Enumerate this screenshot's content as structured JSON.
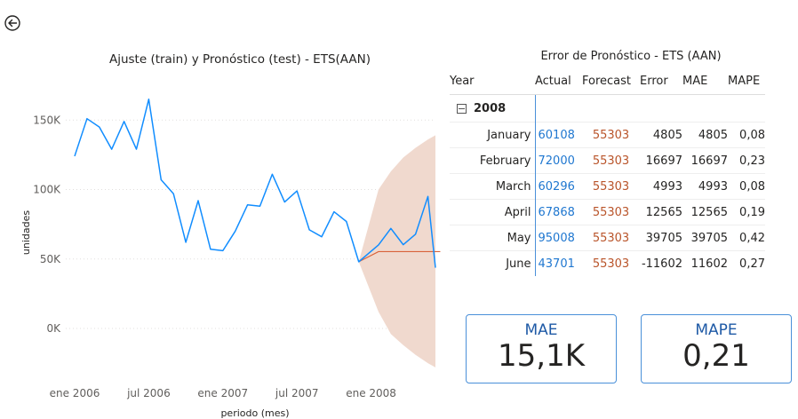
{
  "back_button": {
    "icon": "arrow-left-circle-icon"
  },
  "chart_data": {
    "type": "line",
    "title": "Ajuste (train) y Pronóstico (test) - ETS(AAN)",
    "xlabel": "periodo (mes)",
    "ylabel": "unidades",
    "x_tick_labels": [
      "ene 2006",
      "jul 2006",
      "ene 2007",
      "jul 2007",
      "ene 2008"
    ],
    "y_tick_labels": [
      "0K",
      "50K",
      "100K",
      "150K"
    ],
    "ylim": [
      -30000,
      170000
    ],
    "x_start": "2006-01",
    "colors": {
      "actual": "#118dff",
      "forecast": "#d9623a",
      "interval": "#f0d9ce"
    },
    "series": [
      {
        "name": "Actual",
        "x": [
          "2006-01",
          "2006-02",
          "2006-03",
          "2006-04",
          "2006-05",
          "2006-06",
          "2006-07",
          "2006-08",
          "2006-09",
          "2006-10",
          "2006-11",
          "2006-12",
          "2007-01",
          "2007-02",
          "2007-03",
          "2007-04",
          "2007-05",
          "2007-06",
          "2007-07",
          "2007-08",
          "2007-09",
          "2007-10",
          "2007-11",
          "2007-12",
          "2008-01",
          "2008-02",
          "2008-03",
          "2008-04",
          "2008-05",
          "2008-06"
        ],
        "values": [
          124000,
          151000,
          145000,
          129000,
          149000,
          129000,
          165000,
          107000,
          97000,
          62000,
          92000,
          57000,
          56000,
          70000,
          89000,
          88000,
          111000,
          91000,
          99000,
          71000,
          66000,
          84000,
          77000,
          48000,
          60108,
          72000,
          60296,
          67868,
          95008,
          43701
        ]
      },
      {
        "name": "Forecast",
        "x": [
          "2007-12",
          "2008-01",
          "2008-02",
          "2008-03",
          "2008-04",
          "2008-05",
          "2008-06"
        ],
        "values": [
          48000,
          55303,
          55303,
          55303,
          55303,
          55303,
          55303
        ]
      },
      {
        "name": "Intervalo",
        "x": [
          "2008-01",
          "2008-02",
          "2008-03",
          "2008-04",
          "2008-05",
          "2008-06"
        ],
        "upper": [
          100000,
          113000,
          123000,
          130000,
          136000,
          141000
        ],
        "lower": [
          12000,
          -4000,
          -12000,
          -19000,
          -25000,
          -30000
        ]
      }
    ]
  },
  "error_table": {
    "title": "Error de Pronóstico - ETS (AAN)",
    "headers": {
      "year": "Year",
      "actual": "Actual",
      "forecast": "Forecast",
      "error": "Error",
      "mae": "MAE",
      "mape": "MAPE"
    },
    "group": "2008",
    "rows": [
      {
        "month": "January",
        "actual": "60108",
        "forecast": "55303",
        "error": "4805",
        "mae": "4805",
        "mape": "0,08"
      },
      {
        "month": "February",
        "actual": "72000",
        "forecast": "55303",
        "error": "16697",
        "mae": "16697",
        "mape": "0,23"
      },
      {
        "month": "March",
        "actual": "60296",
        "forecast": "55303",
        "error": "4993",
        "mae": "4993",
        "mape": "0,08"
      },
      {
        "month": "April",
        "actual": "67868",
        "forecast": "55303",
        "error": "12565",
        "mae": "12565",
        "mape": "0,19"
      },
      {
        "month": "May",
        "actual": "95008",
        "forecast": "55303",
        "error": "39705",
        "mae": "39705",
        "mape": "0,42"
      },
      {
        "month": "June",
        "actual": "43701",
        "forecast": "55303",
        "error": "-11602",
        "mae": "11602",
        "mape": "0,27"
      }
    ]
  },
  "kpis": {
    "mae": {
      "label": "MAE",
      "value": "15,1K"
    },
    "mape": {
      "label": "MAPE",
      "value": "0,21"
    }
  }
}
